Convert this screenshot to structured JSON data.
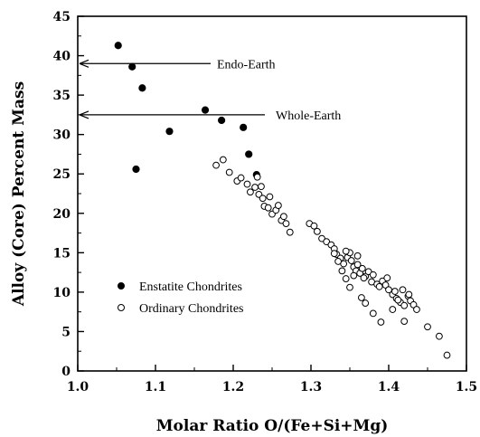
{
  "chart_data": {
    "type": "scatter",
    "xlabel": "Molar Ratio O/(Fe+Si+Mg)",
    "ylabel": "Alloy (Core) Percent Mass",
    "xlim": [
      1.0,
      1.5
    ],
    "ylim": [
      0,
      45
    ],
    "x_ticks": [
      "1.0",
      "1.1",
      "1.2",
      "1.3",
      "1.4",
      "1.5"
    ],
    "y_ticks": [
      "0",
      "5",
      "10",
      "15",
      "20",
      "25",
      "30",
      "35",
      "40",
      "45"
    ],
    "grid": false,
    "legend_position": "lower-left",
    "series": [
      {
        "name": "Enstatite Chondrites",
        "marker": "filled-circle",
        "color": "#000000",
        "points": [
          [
            1.052,
            41.3
          ],
          [
            1.07,
            38.6
          ],
          [
            1.083,
            35.9
          ],
          [
            1.118,
            30.4
          ],
          [
            1.075,
            25.6
          ],
          [
            1.164,
            33.1
          ],
          [
            1.185,
            31.8
          ],
          [
            1.213,
            30.9
          ],
          [
            1.22,
            27.5
          ],
          [
            1.23,
            24.9
          ]
        ]
      },
      {
        "name": "Ordinary Chondrites",
        "marker": "open-circle",
        "color": "#000000",
        "points": [
          [
            1.178,
            26.1
          ],
          [
            1.187,
            26.8
          ],
          [
            1.195,
            25.2
          ],
          [
            1.205,
            24.1
          ],
          [
            1.21,
            24.5
          ],
          [
            1.218,
            23.7
          ],
          [
            1.222,
            22.7
          ],
          [
            1.228,
            23.3
          ],
          [
            1.233,
            22.4
          ],
          [
            1.238,
            21.9
          ],
          [
            1.231,
            24.6
          ],
          [
            1.236,
            23.4
          ],
          [
            1.24,
            20.9
          ],
          [
            1.245,
            20.7
          ],
          [
            1.25,
            19.9
          ],
          [
            1.255,
            20.4
          ],
          [
            1.262,
            19.1
          ],
          [
            1.268,
            18.7
          ],
          [
            1.273,
            17.6
          ],
          [
            1.247,
            22.1
          ],
          [
            1.258,
            21.0
          ],
          [
            1.265,
            19.6
          ],
          [
            1.298,
            18.7
          ],
          [
            1.304,
            18.4
          ],
          [
            1.308,
            17.7
          ],
          [
            1.314,
            16.8
          ],
          [
            1.32,
            16.4
          ],
          [
            1.326,
            16.0
          ],
          [
            1.33,
            15.5
          ],
          [
            1.333,
            14.8
          ],
          [
            1.338,
            14.3
          ],
          [
            1.342,
            13.6
          ],
          [
            1.347,
            14.4
          ],
          [
            1.35,
            15.0
          ],
          [
            1.352,
            14.0
          ],
          [
            1.355,
            13.2
          ],
          [
            1.358,
            12.7
          ],
          [
            1.36,
            14.6
          ],
          [
            1.363,
            12.4
          ],
          [
            1.366,
            13.0
          ],
          [
            1.37,
            12.0
          ],
          [
            1.374,
            12.6
          ],
          [
            1.378,
            11.3
          ],
          [
            1.38,
            12.2
          ],
          [
            1.385,
            11.0
          ],
          [
            1.388,
            10.7
          ],
          [
            1.392,
            11.4
          ],
          [
            1.396,
            10.9
          ],
          [
            1.4,
            10.3
          ],
          [
            1.405,
            9.7
          ],
          [
            1.41,
            9.2
          ],
          [
            1.415,
            8.7
          ],
          [
            1.42,
            8.3
          ],
          [
            1.425,
            9.5
          ],
          [
            1.428,
            8.9
          ],
          [
            1.432,
            8.4
          ],
          [
            1.436,
            7.8
          ],
          [
            1.34,
            12.7
          ],
          [
            1.345,
            11.7
          ],
          [
            1.35,
            10.6
          ],
          [
            1.355,
            12.1
          ],
          [
            1.365,
            9.3
          ],
          [
            1.37,
            8.6
          ],
          [
            1.38,
            7.3
          ],
          [
            1.39,
            6.2
          ],
          [
            1.405,
            7.8
          ],
          [
            1.42,
            6.3
          ],
          [
            1.45,
            5.6
          ],
          [
            1.465,
            4.4
          ],
          [
            1.475,
            2.0
          ],
          [
            1.33,
            14.9
          ],
          [
            1.335,
            13.9
          ],
          [
            1.345,
            15.2
          ],
          [
            1.36,
            13.5
          ],
          [
            1.368,
            11.8
          ],
          [
            1.398,
            11.8
          ],
          [
            1.408,
            10.1
          ],
          [
            1.412,
            9.0
          ],
          [
            1.418,
            10.3
          ],
          [
            1.426,
            9.7
          ]
        ]
      }
    ],
    "annotations": [
      {
        "text": "Endo-Earth",
        "y": 39.0
      },
      {
        "text": "Whole-Earth",
        "y": 32.5
      }
    ]
  }
}
